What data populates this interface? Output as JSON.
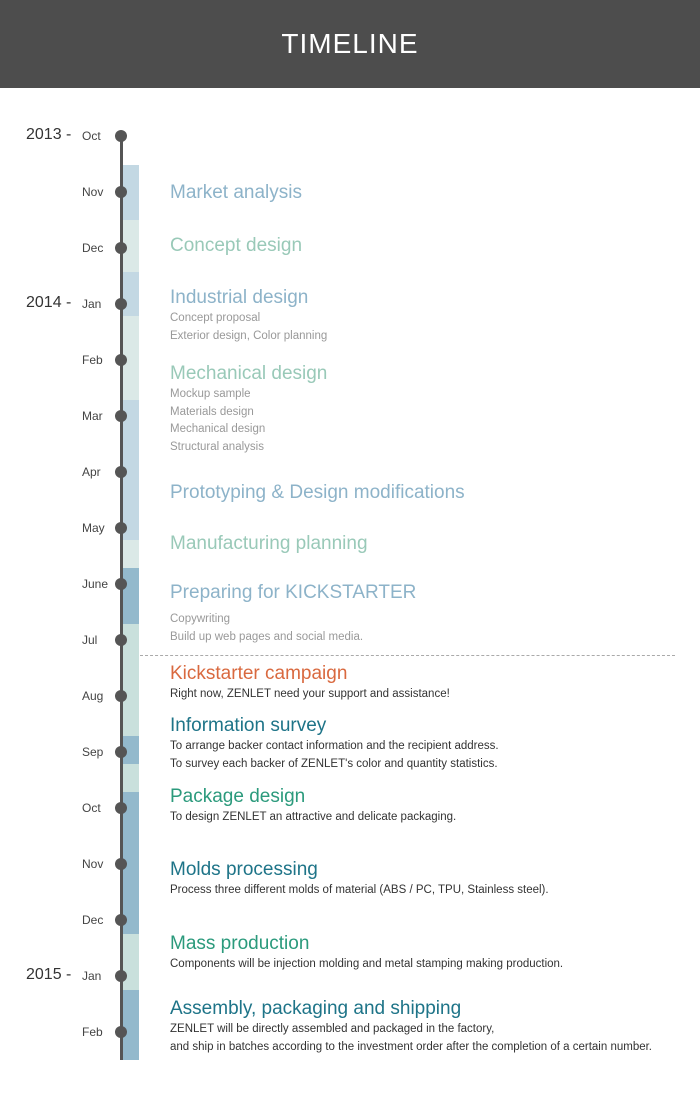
{
  "header": {
    "title": "TIMELINE"
  },
  "colors": {
    "header_bg": "#4d4d4d",
    "past_title_blue": "#8db3c9",
    "past_title_green": "#99c9b8",
    "kickstarter_orange": "#d9693f",
    "future_title_teal": "#1e7488",
    "future_title_green": "#2b9a7c"
  },
  "timeline": {
    "years": [
      {
        "label": "2013 -",
        "month_index": 0
      },
      {
        "label": "2014 -",
        "month_index": 3
      },
      {
        "label": "2015 -",
        "month_index": 15
      }
    ],
    "months": [
      "Oct",
      "Nov",
      "Dec",
      "Jan",
      "Feb",
      "Mar",
      "Apr",
      "May",
      "June",
      "Jul",
      "Aug",
      "Sep",
      "Oct",
      "Nov",
      "Dec",
      "Jan",
      "Feb"
    ],
    "events": [
      {
        "title": "Market analysis",
        "details": []
      },
      {
        "title": "Concept design",
        "details": []
      },
      {
        "title": "Industrial design",
        "details": [
          "Concept proposal",
          "Exterior design, Color planning"
        ]
      },
      {
        "title": "Mechanical design",
        "details": [
          "Mockup sample",
          "Materials design",
          "Mechanical design",
          "Structural analysis"
        ]
      },
      {
        "title": "Prototyping & Design modifications",
        "details": []
      },
      {
        "title": "Manufacturing planning",
        "details": []
      },
      {
        "title": "Preparing for KICKSTARTER",
        "details": [
          "Copywriting",
          "Build up web pages and social media."
        ]
      },
      {
        "title": "Kickstarter campaign",
        "details": [
          "Right now, ZENLET need your support and assistance!"
        ]
      },
      {
        "title": "Information survey",
        "details": [
          "To arrange backer contact information and the recipient address.",
          "To survey each backer of ZENLET's color and quantity statistics."
        ]
      },
      {
        "title": "Package design",
        "details": [
          "To design ZENLET an attractive and delicate packaging."
        ]
      },
      {
        "title": "Molds processing",
        "details": [
          "Process three different molds of material (ABS / PC, TPU, Stainless steel)."
        ]
      },
      {
        "title": "Mass production",
        "details": [
          "Components will be injection molding and metal stamping making production."
        ]
      },
      {
        "title": "Assembly, packaging and shipping",
        "details": [
          "ZENLET will be directly assembled and packaged in the factory,",
          "and ship in batches according to the investment order after the completion of a certain number."
        ]
      }
    ]
  }
}
